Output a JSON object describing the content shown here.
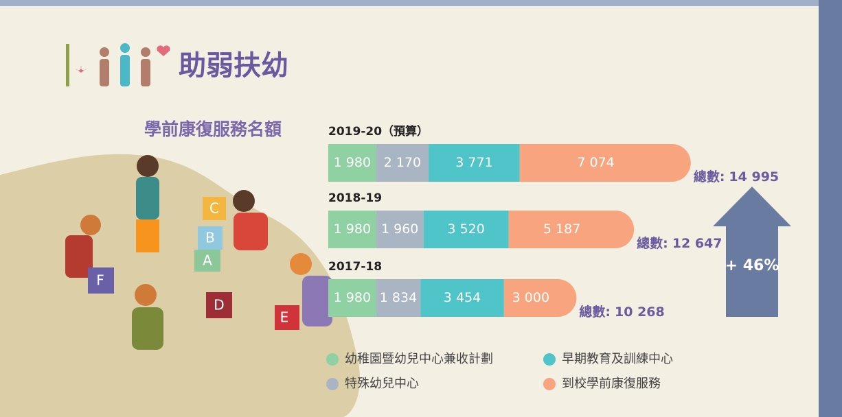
{
  "header": {
    "title": "助弱扶幼"
  },
  "blocks": [
    "A",
    "B",
    "C",
    "D",
    "E",
    "F"
  ],
  "chart_data": {
    "type": "bar",
    "orientation": "horizontal",
    "stacked": true,
    "title": "學前康復服務名額",
    "categories": [
      "2019-20（預算）",
      "2018-19",
      "2017-18"
    ],
    "series": [
      {
        "name": "幼稚園暨幼兒中心兼收計劃",
        "color": "#8fd1a2",
        "values": [
          1980,
          1980,
          1980
        ],
        "value_labels": [
          "1 980",
          "1 980",
          "1 980"
        ]
      },
      {
        "name": "特殊幼兒中心",
        "color": "#a9b5c2",
        "values": [
          2170,
          1960,
          1834
        ],
        "value_labels": [
          "2 170",
          "1 960",
          "1 834"
        ]
      },
      {
        "name": "早期教育及訓練中心",
        "color": "#4fc4c9",
        "values": [
          3771,
          3520,
          3454
        ],
        "value_labels": [
          "3 771",
          "3 520",
          "3 454"
        ]
      },
      {
        "name": "到校學前康復服務",
        "color": "#f8a57f",
        "values": [
          7074,
          5187,
          3000
        ],
        "value_labels": [
          "7 074",
          "5 187",
          "3 000"
        ]
      }
    ],
    "total_label": "總數:",
    "totals": [
      14995,
      12647,
      10268
    ],
    "total_value_labels": [
      "14 995",
      "12 647",
      "10 268"
    ],
    "annotation": {
      "value": 46,
      "label": "+ 46%"
    }
  }
}
